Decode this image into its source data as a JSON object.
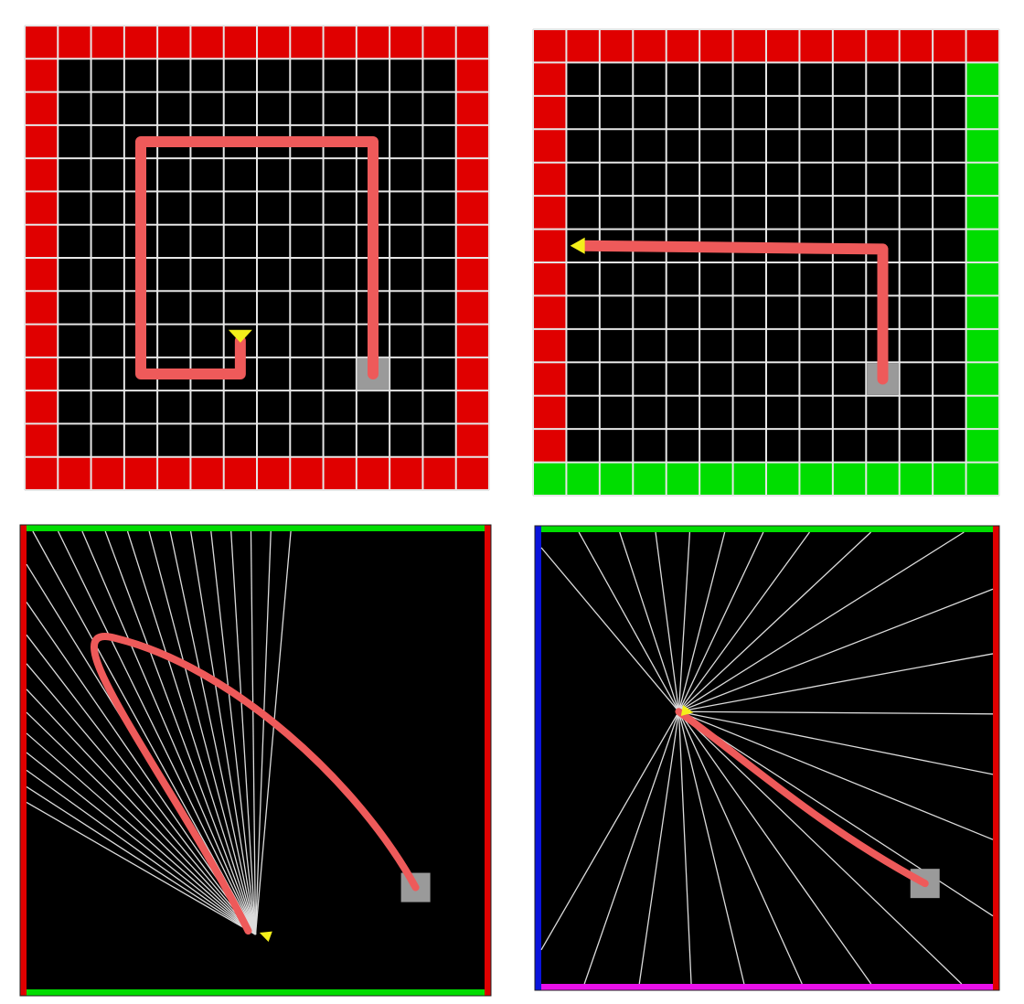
{
  "colors": {
    "page_background": "#ffffff",
    "floor": "#000000",
    "grid_line": "#e6e6e6",
    "wall_red": "#e00000",
    "wall_green": "#00dd00",
    "wall_blue": "#0a14dc",
    "wall_magenta": "#ea10ea",
    "trajectory": "#ee5a5a",
    "agent_marker": "#f4f01a",
    "goal": "#9a9a9a",
    "sensor_ray": "#dcdcdc"
  },
  "panels": [
    {
      "id": "top-left",
      "kind": "grid",
      "grid_size": 14,
      "walls": {
        "top": "wall_red",
        "left": "wall_red",
        "right": "wall_red",
        "bottom": "wall_red"
      },
      "goal_cell": [
        10,
        10
      ],
      "agent_cell": [
        6,
        9
      ],
      "agent_heading": "down",
      "trajectory_cells": [
        [
          6,
          9
        ],
        [
          6,
          10
        ],
        [
          3,
          10
        ],
        [
          3,
          3
        ],
        [
          10,
          3
        ],
        [
          10,
          10
        ]
      ]
    },
    {
      "id": "top-right",
      "kind": "grid",
      "grid_size": 14,
      "walls": {
        "top": "wall_red",
        "left": "wall_red",
        "right": "wall_green",
        "bottom": "wall_green"
      },
      "goal_cell": [
        10,
        10
      ],
      "agent_cell": [
        1,
        6
      ],
      "agent_heading": "left",
      "trajectory_cells": [
        [
          1,
          6
        ],
        [
          10,
          6.1
        ],
        [
          10,
          10
        ]
      ]
    },
    {
      "id": "bottom-left",
      "kind": "continuous",
      "walls": {
        "top": "wall_green",
        "left": "wall_red",
        "right": "wall_red",
        "bottom": "wall_green"
      },
      "goal": [
        0.84,
        0.77
      ],
      "agent": [
        0.5,
        0.87
      ],
      "agent_heading_deg": 200,
      "sensor_rays": 24,
      "sensor_fan_deg": [
        -150,
        -85
      ]
    },
    {
      "id": "bottom-right",
      "kind": "continuous",
      "walls": {
        "top": "wall_green",
        "left": "wall_blue",
        "right": "wall_red",
        "bottom": "wall_magenta"
      },
      "goal": [
        0.84,
        0.77
      ],
      "agent": [
        0.31,
        0.4
      ],
      "agent_heading_deg": 10,
      "sensor_rays": 24,
      "sensor_fan_deg": [
        -130,
        120
      ]
    }
  ]
}
